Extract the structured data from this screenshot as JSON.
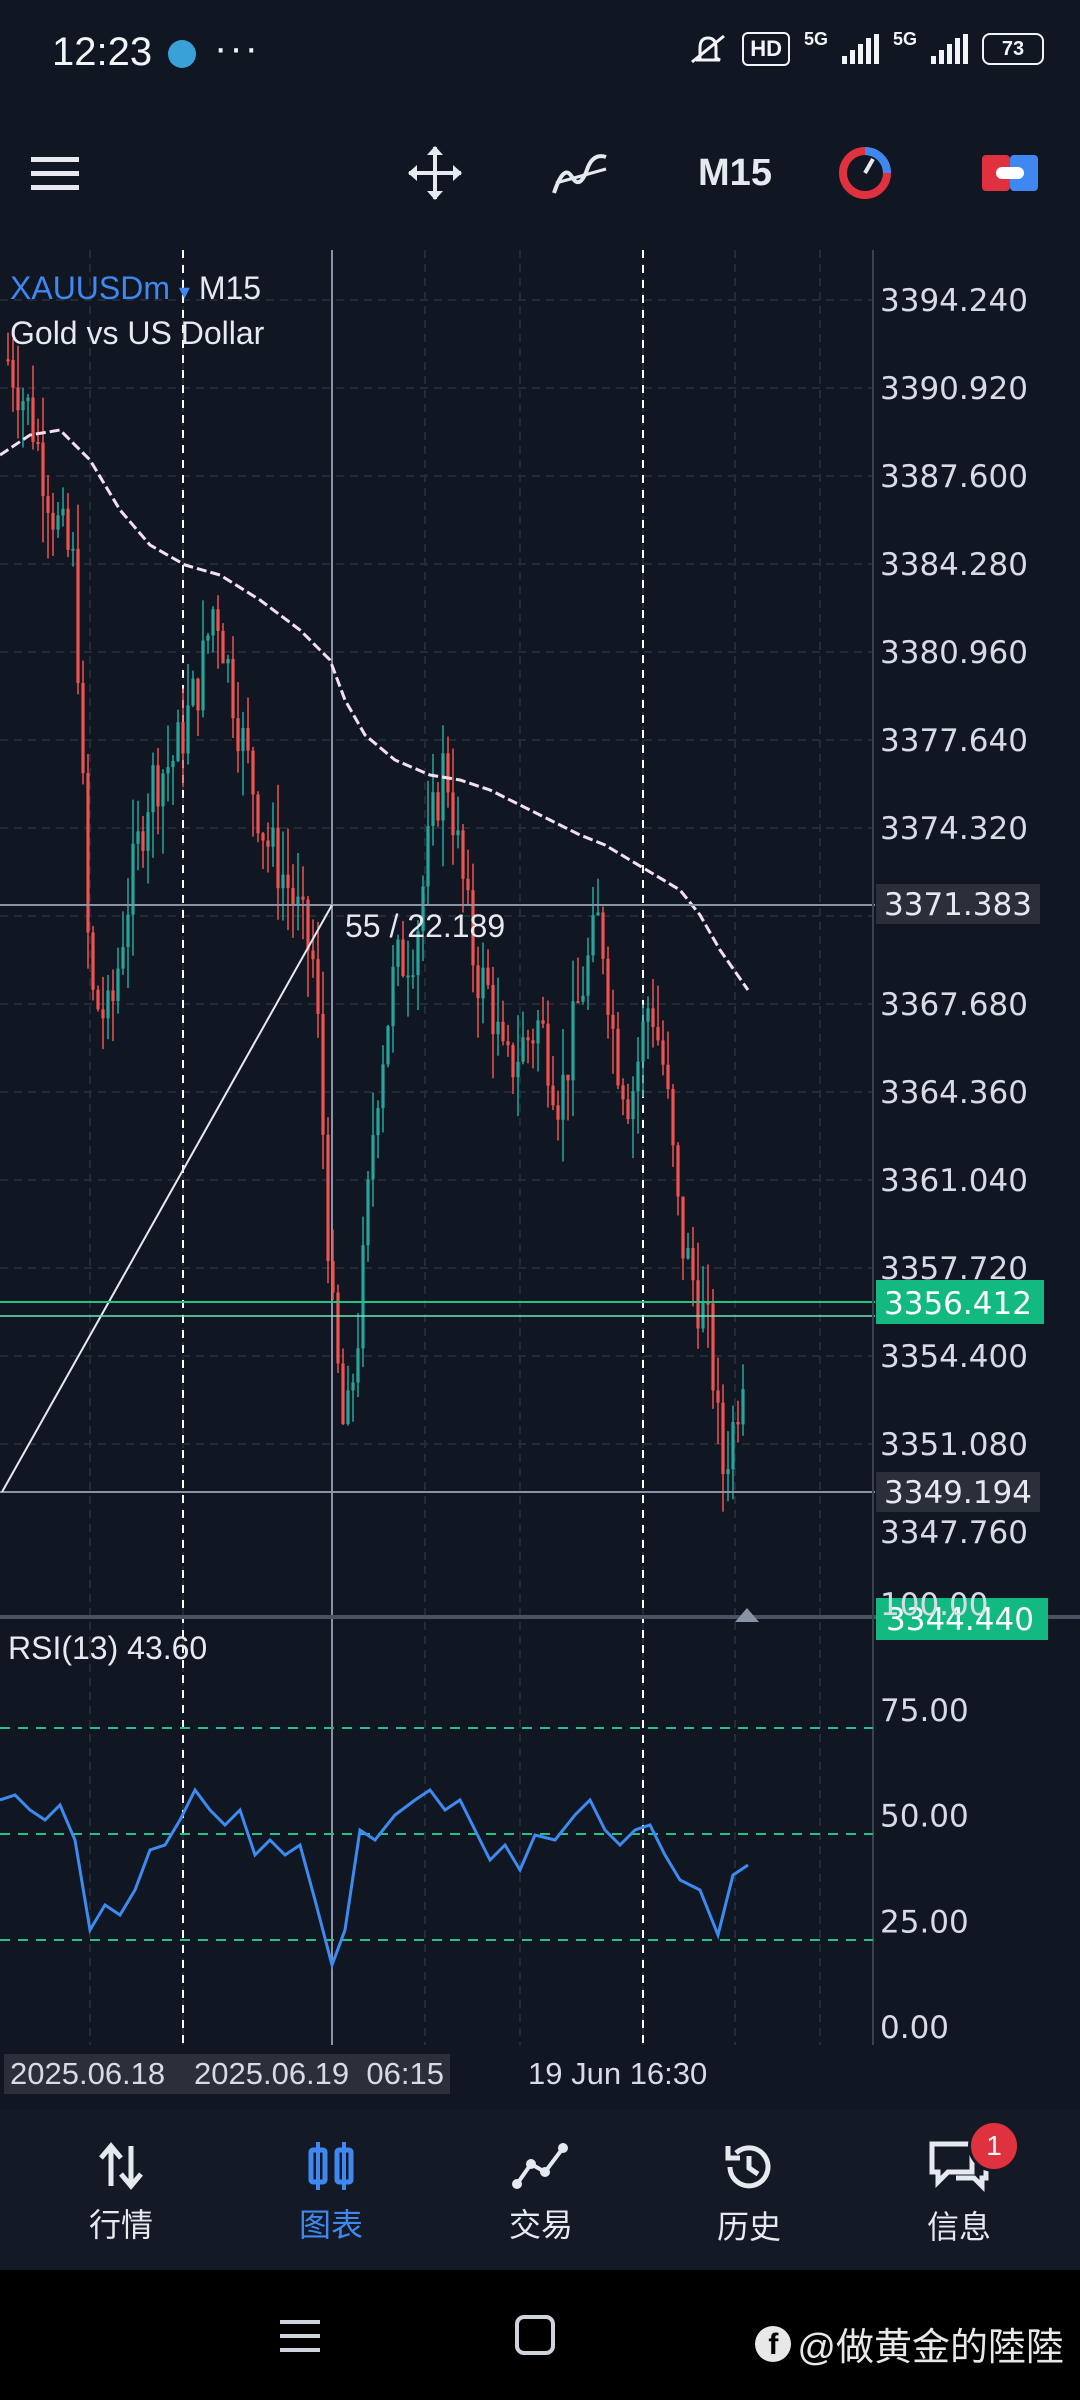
{
  "status_bar": {
    "time": "12:23",
    "more": "···",
    "hd": "HD",
    "network_1": "5G",
    "network_2": "5G",
    "battery": "73"
  },
  "toolbar": {
    "timeframe": "M15",
    "icons": [
      "menu-icon",
      "crosshair-move-icon",
      "indicators-icon",
      "timeframe",
      "one-click-trading-icon",
      "trade-toggle-icon"
    ]
  },
  "chart": {
    "symbol": "XAUUSDm",
    "dropdown_glyph": "▾",
    "timeframe": "M15",
    "description": "Gold vs US Dollar",
    "ruler_text": "55 / 22.189",
    "price_axis": [
      "3394.240",
      "3390.920",
      "3387.600",
      "3384.280",
      "3380.960",
      "3377.640",
      "3374.320",
      "3367.680",
      "3364.360",
      "3361.040",
      "3357.720",
      "3354.400",
      "3351.080",
      "3347.760"
    ],
    "price_tags": {
      "crosshair_top": "3371.383",
      "bid": "3356.412",
      "crosshair_bottom": "3349.194",
      "low": "3344.440"
    },
    "rsi_label": "RSI(13) 43.60",
    "rsi_axis": [
      "100.00",
      "75.00",
      "50.00",
      "25.00",
      "0.00"
    ],
    "time_axis": {
      "left_box": "2025.06.18",
      "center_box": "2025.06.19  06:15",
      "right": "19 Jun 16:30"
    },
    "colors": {
      "bull": "#26a69a",
      "bear": "#ef5350",
      "ma": "#f3dff0",
      "rsi": "#3d8bf0",
      "level_green": "#26c281",
      "tag_green": "#12b981"
    }
  },
  "bottom_nav": {
    "items": [
      {
        "label": "行情",
        "icon": "quotes-icon"
      },
      {
        "label": "图表",
        "icon": "chart-icon"
      },
      {
        "label": "交易",
        "icon": "trade-icon"
      },
      {
        "label": "历史",
        "icon": "history-icon"
      },
      {
        "label": "信息",
        "icon": "messages-icon"
      }
    ],
    "messages_badge": "1"
  },
  "watermark": "@做黄金的陸陸"
}
